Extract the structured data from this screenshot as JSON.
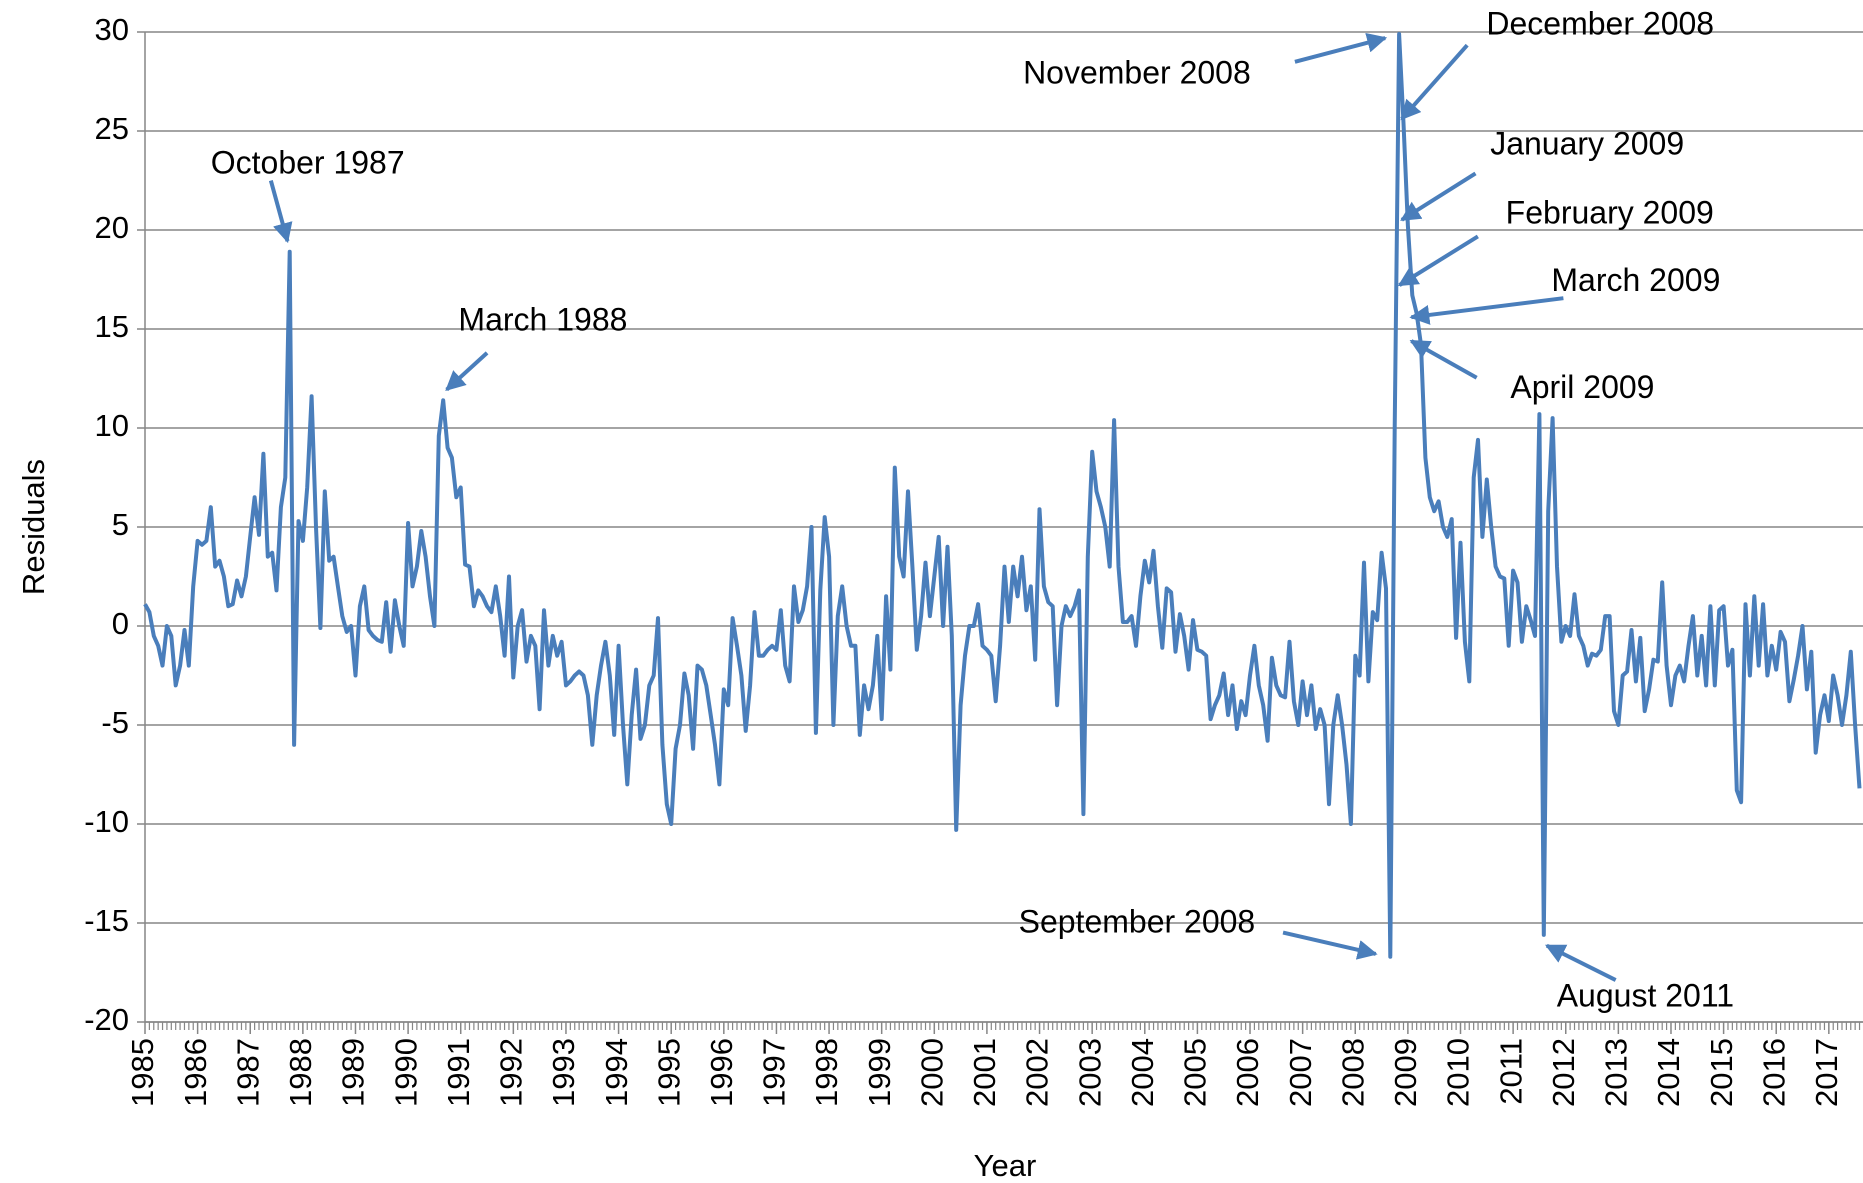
{
  "chart_data": {
    "type": "line",
    "x_label": "Year",
    "y_label": "Residuals",
    "categories": [
      "1985",
      null,
      null,
      null,
      null,
      null,
      null,
      null,
      null,
      null,
      null,
      null,
      "1986",
      null,
      null,
      null,
      null,
      null,
      null,
      null,
      null,
      null,
      null,
      null,
      "1987",
      null,
      null,
      null,
      null,
      null,
      null,
      null,
      null,
      null,
      null,
      null,
      "1988",
      null,
      null,
      null,
      null,
      null,
      null,
      null,
      null,
      null,
      null,
      null,
      "1989",
      null,
      null,
      null,
      null,
      null,
      null,
      null,
      null,
      null,
      null,
      null,
      "1990",
      null,
      null,
      null,
      null,
      null,
      null,
      null,
      null,
      null,
      null,
      null,
      "1991",
      null,
      null,
      null,
      null,
      null,
      null,
      null,
      null,
      null,
      null,
      null,
      "1992",
      null,
      null,
      null,
      null,
      null,
      null,
      null,
      null,
      null,
      null,
      null,
      "1993",
      null,
      null,
      null,
      null,
      null,
      null,
      null,
      null,
      null,
      null,
      null,
      "1994",
      null,
      null,
      null,
      null,
      null,
      null,
      null,
      null,
      null,
      null,
      null,
      "1995",
      null,
      null,
      null,
      null,
      null,
      null,
      null,
      null,
      null,
      null,
      null,
      "1996",
      null,
      null,
      null,
      null,
      null,
      null,
      null,
      null,
      null,
      null,
      null,
      "1997",
      null,
      null,
      null,
      null,
      null,
      null,
      null,
      null,
      null,
      null,
      null,
      "1998",
      null,
      null,
      null,
      null,
      null,
      null,
      null,
      null,
      null,
      null,
      null,
      "1999",
      null,
      null,
      null,
      null,
      null,
      null,
      null,
      null,
      null,
      null,
      null,
      "2000",
      null,
      null,
      null,
      null,
      null,
      null,
      null,
      null,
      null,
      null,
      null,
      "2001",
      null,
      null,
      null,
      null,
      null,
      null,
      null,
      null,
      null,
      null,
      null,
      "2002",
      null,
      null,
      null,
      null,
      null,
      null,
      null,
      null,
      null,
      null,
      null,
      "2003",
      null,
      null,
      null,
      null,
      null,
      null,
      null,
      null,
      null,
      null,
      null,
      "2004",
      null,
      null,
      null,
      null,
      null,
      null,
      null,
      null,
      null,
      null,
      null,
      "2005",
      null,
      null,
      null,
      null,
      null,
      null,
      null,
      null,
      null,
      null,
      null,
      "2006",
      null,
      null,
      null,
      null,
      null,
      null,
      null,
      null,
      null,
      null,
      null,
      "2007",
      null,
      null,
      null,
      null,
      null,
      null,
      null,
      null,
      null,
      null,
      null,
      "2008",
      null,
      null,
      null,
      null,
      null,
      null,
      null,
      null,
      null,
      null,
      null,
      "2009",
      null,
      null,
      null,
      null,
      null,
      null,
      null,
      null,
      null,
      null,
      null,
      "2010",
      null,
      null,
      null,
      null,
      null,
      null,
      null,
      null,
      null,
      null,
      null,
      "2011",
      null,
      null,
      null,
      null,
      null,
      null,
      null,
      null,
      null,
      null,
      null,
      "2012",
      null,
      null,
      null,
      null,
      null,
      null,
      null,
      null,
      null,
      null,
      null,
      "2013",
      null,
      null,
      null,
      null,
      null,
      null,
      null,
      null,
      null,
      null,
      null,
      "2014",
      null,
      null,
      null,
      null,
      null,
      null,
      null,
      null,
      null,
      null,
      null,
      "2015",
      null,
      null,
      null,
      null,
      null,
      null,
      null,
      null,
      null,
      null,
      null,
      "2016",
      null,
      null,
      null,
      null,
      null,
      null,
      null,
      null,
      null,
      null,
      null,
      "2017",
      null,
      null,
      null,
      null,
      null,
      null,
      null
    ],
    "series": [
      {
        "name": "Residuals",
        "color": "#4a7ebb",
        "values": [
          1.1,
          0.7,
          -0.5,
          -1,
          -2,
          0,
          -0.5,
          -3,
          -2,
          -0.2,
          -2,
          2,
          4.3,
          4.1,
          4.3,
          6,
          3,
          3.3,
          2.5,
          1,
          1.1,
          2.3,
          1.5,
          2.5,
          4.5,
          6.5,
          4.6,
          8.7,
          3.5,
          3.7,
          1.8,
          6,
          7.5,
          18.9,
          -6,
          5.3,
          4.3,
          7,
          11.6,
          5,
          -0.1,
          6.8,
          3.3,
          3.5,
          2,
          0.5,
          -0.3,
          0,
          -2.5,
          1,
          2,
          -0.2,
          -0.5,
          -0.7,
          -0.8,
          1.2,
          -1.3,
          1.3,
          0,
          -1,
          5.2,
          2,
          3,
          4.8,
          3.5,
          1.5,
          0,
          9.6,
          11.4,
          9,
          8.5,
          6.5,
          7,
          3.1,
          3,
          1,
          1.8,
          1.5,
          1,
          0.7,
          2,
          0.5,
          -1.5,
          2.5,
          -2.6,
          0,
          0.8,
          -1.8,
          -0.5,
          -1,
          -4.2,
          0.8,
          -2,
          -0.5,
          -1.5,
          -0.8,
          -3,
          -2.8,
          -2.5,
          -2.3,
          -2.5,
          -3.5,
          -6,
          -3.5,
          -2,
          -0.8,
          -2.5,
          -5.5,
          -1,
          -5,
          -8,
          -4.5,
          -2.2,
          -5.7,
          -5,
          -3,
          -2.5,
          0.4,
          -6,
          -9,
          -10,
          -6.2,
          -5,
          -2.4,
          -3.5,
          -6.2,
          -2,
          -2.2,
          -3,
          -4.5,
          -6,
          -8,
          -3.2,
          -4,
          0.4,
          -1,
          -2.5,
          -5.3,
          -3,
          0.7,
          -1.5,
          -1.5,
          -1.2,
          -1,
          -1.2,
          0.8,
          -2,
          -2.8,
          2,
          0.2,
          0.8,
          2,
          5,
          -5.4,
          1.8,
          5.5,
          3.5,
          -5,
          0.5,
          2,
          0,
          -1,
          -1,
          -5.5,
          -3,
          -4.2,
          -3,
          -0.5,
          -4.7,
          1.5,
          -2.2,
          8,
          3.5,
          2.5,
          6.8,
          3,
          -1.2,
          0.5,
          3.2,
          0.5,
          2.5,
          4.5,
          0,
          4,
          -0.5,
          -10.3,
          -4,
          -1.5,
          0,
          0,
          1.1,
          -1,
          -1.2,
          -1.5,
          -3.8,
          -1,
          3,
          0.2,
          3,
          1.5,
          3.5,
          0.8,
          2,
          -1.7,
          5.9,
          2,
          1.2,
          1,
          -4,
          0,
          1,
          0.5,
          1,
          1.8,
          -9.5,
          3.5,
          8.8,
          6.8,
          6,
          5,
          3,
          10.4,
          3,
          0.2,
          0.2,
          0.5,
          -1,
          1.5,
          3.3,
          2.2,
          3.8,
          1,
          -1.1,
          1.9,
          1.7,
          -1.3,
          0.6,
          -0.5,
          -2.2,
          0.3,
          -1.2,
          -1.3,
          -1.5,
          -4.7,
          -4,
          -3.5,
          -2.4,
          -4.5,
          -3,
          -5.2,
          -3.8,
          -4.5,
          -2.5,
          -1,
          -3,
          -4,
          -5.8,
          -1.6,
          -3,
          -3.5,
          -3.6,
          -0.8,
          -3.8,
          -5,
          -2.8,
          -4.5,
          -3,
          -5.2,
          -4.2,
          -5,
          -9,
          -5,
          -3.5,
          -5,
          -7,
          -10,
          -1.5,
          -2.5,
          3.2,
          -2.8,
          0.7,
          0.3,
          3.7,
          1.9,
          -16.7,
          10,
          29.9,
          25.4,
          20.2,
          16.7,
          15.8,
          14.2,
          8.5,
          6.5,
          5.8,
          6.3,
          5,
          4.5,
          5.4,
          -0.6,
          4.2,
          -0.8,
          -2.8,
          7.5,
          9.4,
          4.5,
          7.4,
          5,
          3,
          2.5,
          2.4,
          -1,
          2.8,
          2.2,
          -0.8,
          1,
          0.3,
          -0.5,
          10.7,
          -15.6,
          5.8,
          10.5,
          3,
          -0.8,
          0,
          -0.5,
          1.6,
          -0.5,
          -1,
          -2,
          -1.4,
          -1.5,
          -1.2,
          0.5,
          0.5,
          -4.3,
          -5,
          -2.5,
          -2.3,
          -0.2,
          -2.8,
          -0.6,
          -4.3,
          -3.2,
          -1.7,
          -1.8,
          2.2,
          -2,
          -4,
          -2.5,
          -2,
          -2.8,
          -1,
          0.5,
          -2.5,
          -0.5,
          -3,
          1,
          -3,
          0.8,
          1,
          -2,
          -1.2,
          -8.3,
          -8.9,
          1.1,
          -2.5,
          1.5,
          -2,
          1.1,
          -2.5,
          -1,
          -2.2,
          -0.3,
          -0.8,
          -3.8,
          -2.7,
          -1.5,
          0,
          -3.2,
          -1.3,
          -6.4,
          -4.5,
          -3.5,
          -4.8,
          -2.5,
          -3.5,
          -5,
          -3.5,
          -1.3,
          -5,
          -8.2
        ]
      }
    ],
    "ylim": [
      -20,
      30
    ],
    "yticks": [
      -20,
      -15,
      -10,
      -5,
      0,
      5,
      10,
      15,
      20,
      25,
      30
    ],
    "grid": true,
    "annotations": [
      "October 1987",
      "March 1988",
      "November 2008",
      "December 2008",
      "January 2009",
      "February 2009",
      "March 2009",
      "April 2009",
      "September 2008",
      "August 2011"
    ]
  }
}
